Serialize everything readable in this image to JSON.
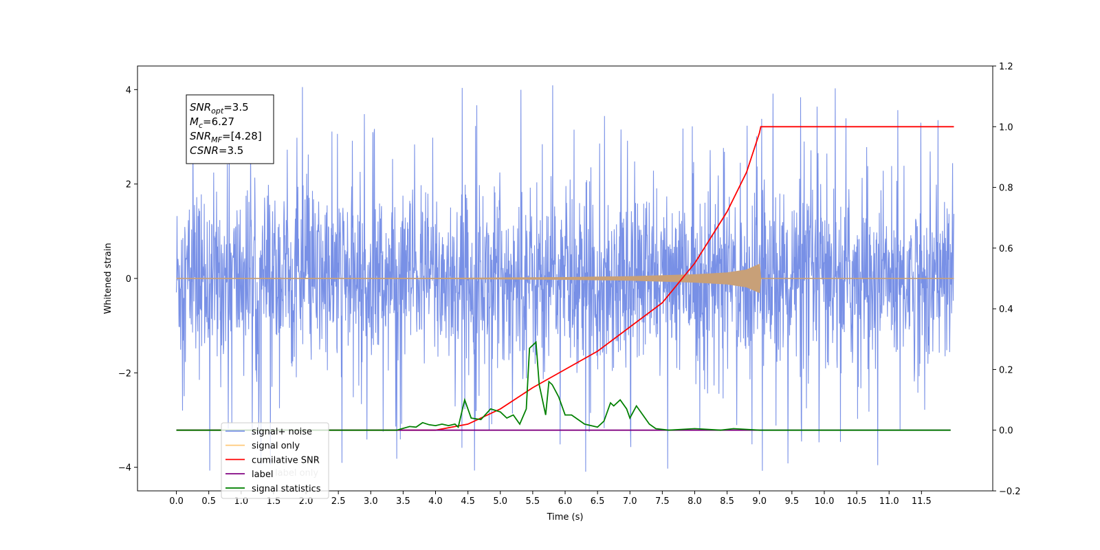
{
  "chart_data": {
    "type": "line",
    "xlabel": "Time (s)",
    "ylabel": "Whitened strain",
    "xlim": [
      -0.6,
      12.6
    ],
    "ylim": [
      -4.5,
      4.5
    ],
    "y2lim": [
      -0.2,
      1.2
    ],
    "x_ticks": [
      "0.0",
      "0.5",
      "1.0",
      "1.5",
      "2.0",
      "2.5",
      "3.0",
      "3.5",
      "4.0",
      "4.5",
      "5.0",
      "5.5",
      "6.0",
      "6.5",
      "7.0",
      "7.5",
      "8.0",
      "8.5",
      "9.0",
      "9.5",
      "10.0",
      "10.5",
      "11.0",
      "11.5"
    ],
    "y_ticks": [
      "4",
      "2",
      "0",
      "−2",
      "−4"
    ],
    "y_tick_values": [
      4,
      2,
      0,
      -2,
      -4
    ],
    "y2_ticks": [
      "1.2",
      "1.0",
      "0.8",
      "0.6",
      "0.4",
      "0.2",
      "0.0",
      "−0.2"
    ],
    "y2_tick_values": [
      1.2,
      1.0,
      0.8,
      0.6,
      0.4,
      0.2,
      0.0,
      -0.2
    ],
    "annotation": {
      "lines": [
        {
          "symbol": "SNR",
          "sub": "opt",
          "value": "=3.5"
        },
        {
          "symbol": "M",
          "sub": "c",
          "value": "=6.27"
        },
        {
          "symbol": "SNR",
          "sub": "MF",
          "value": "=[4.28]"
        },
        {
          "symbol": "CSNR",
          "sub": "",
          "value": "=3.5"
        }
      ]
    },
    "legend": {
      "placement": "lower-left",
      "entries": [
        {
          "label": "signal+ noise",
          "color": "#7890e6"
        },
        {
          "label": "signal only",
          "color": "#ffcc80"
        },
        {
          "label": "cumilative SNR",
          "color": "#ff0000"
        },
        {
          "label": "label",
          "color": "#800080"
        },
        {
          "label": "signal statistics",
          "color": "#008000"
        }
      ],
      "hidden_text": [
        "label only"
      ]
    },
    "series": [
      {
        "name": "signal+ noise",
        "axis": "left",
        "color": "#7890e6",
        "x_range": [
          0.0,
          12.0
        ],
        "typical_amplitude": 2.0,
        "max": 4.1,
        "min": -4.1
      },
      {
        "name": "signal only",
        "axis": "left",
        "color": "#c8a078",
        "chirp_end": 9.0,
        "x": [
          0.0,
          4.0,
          6.0,
          7.0,
          8.0,
          8.5,
          8.8,
          9.0,
          9.02,
          12.0
        ],
        "envelope": [
          0.0,
          0.005,
          0.02,
          0.04,
          0.08,
          0.12,
          0.18,
          0.3,
          0.0,
          0.0
        ]
      },
      {
        "name": "cumilative SNR",
        "axis": "right",
        "color": "#ff0000",
        "x": [
          4.0,
          4.5,
          5.0,
          5.5,
          6.0,
          6.5,
          7.0,
          7.5,
          8.0,
          8.5,
          8.8,
          9.0,
          9.02,
          12.0
        ],
        "values": [
          0.0,
          0.02,
          0.07,
          0.14,
          0.2,
          0.26,
          0.34,
          0.42,
          0.55,
          0.72,
          0.85,
          0.98,
          1.0,
          1.0
        ]
      },
      {
        "name": "label",
        "axis": "right",
        "color": "#800080",
        "x": [
          0.0,
          11.95
        ],
        "values": [
          0.0,
          0.0
        ]
      },
      {
        "name": "signal statistics",
        "axis": "right",
        "color": "#008000",
        "x": [
          0.0,
          3.4,
          3.6,
          3.7,
          3.8,
          3.9,
          4.0,
          4.1,
          4.2,
          4.3,
          4.35,
          4.45,
          4.55,
          4.7,
          4.85,
          5.0,
          5.1,
          5.2,
          5.3,
          5.4,
          5.45,
          5.55,
          5.6,
          5.65,
          5.7,
          5.75,
          5.8,
          5.9,
          6.0,
          6.1,
          6.3,
          6.5,
          6.6,
          6.7,
          6.75,
          6.85,
          6.95,
          7.0,
          7.1,
          7.2,
          7.3,
          7.4,
          7.6,
          8.0,
          8.4,
          8.6,
          9.0,
          11.95
        ],
        "values": [
          0.0,
          0.0,
          0.012,
          0.01,
          0.025,
          0.018,
          0.015,
          0.02,
          0.015,
          0.02,
          0.01,
          0.1,
          0.04,
          0.035,
          0.07,
          0.06,
          0.04,
          0.05,
          0.02,
          0.07,
          0.27,
          0.29,
          0.15,
          0.1,
          0.05,
          0.16,
          0.15,
          0.11,
          0.05,
          0.05,
          0.02,
          0.01,
          0.03,
          0.09,
          0.08,
          0.1,
          0.07,
          0.04,
          0.08,
          0.05,
          0.02,
          0.005,
          0.0,
          0.005,
          0.0,
          0.005,
          0.0,
          0.0
        ]
      }
    ]
  }
}
